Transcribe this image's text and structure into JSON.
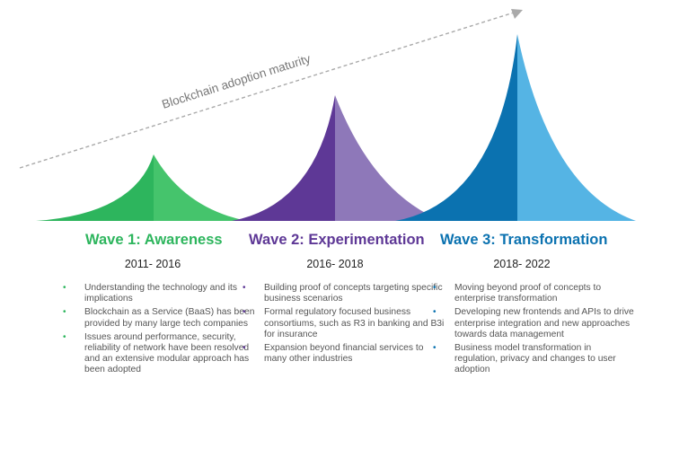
{
  "maturity_label": "Blockchain adoption maturity",
  "colors": {
    "wave1_dark": "#2db55d",
    "wave1_light": "#45c46c",
    "wave2_dark": "#5e3896",
    "wave2_light": "#8e78b9",
    "wave3_dark": "#0b72b0",
    "wave3_light": "#55b4e4",
    "arrow": "#aaaaaa"
  },
  "waves": [
    {
      "title": "Wave 1: Awareness",
      "years": "2011- 2016",
      "color": "#2db55d",
      "bullets": [
        "Understanding the technology and its implications",
        "Blockchain as a Service (BaaS) has been provided by many large tech companies",
        "Issues around performance, security, reliability of network have been resolved and an extensive modular approach has been adopted"
      ]
    },
    {
      "title": "Wave 2: Experimentation",
      "years": "2016- 2018",
      "color": "#5e3896",
      "bullets": [
        "Building proof of concepts targeting specific business scenarios",
        "Formal regulatory focused business consortiums, such as R3 in banking and B3i for insurance",
        "Expansion beyond financial services to many other industries"
      ]
    },
    {
      "title": "Wave 3: Transformation",
      "years": "2018- 2022",
      "color": "#0b72b0",
      "bullets": [
        "Moving beyond proof of concepts to enterprise transformation",
        "Developing new frontends and APIs to drive enterprise integration and new approaches towards data management",
        "Business model transformation in regulation, privacy and changes to user adoption"
      ]
    }
  ]
}
